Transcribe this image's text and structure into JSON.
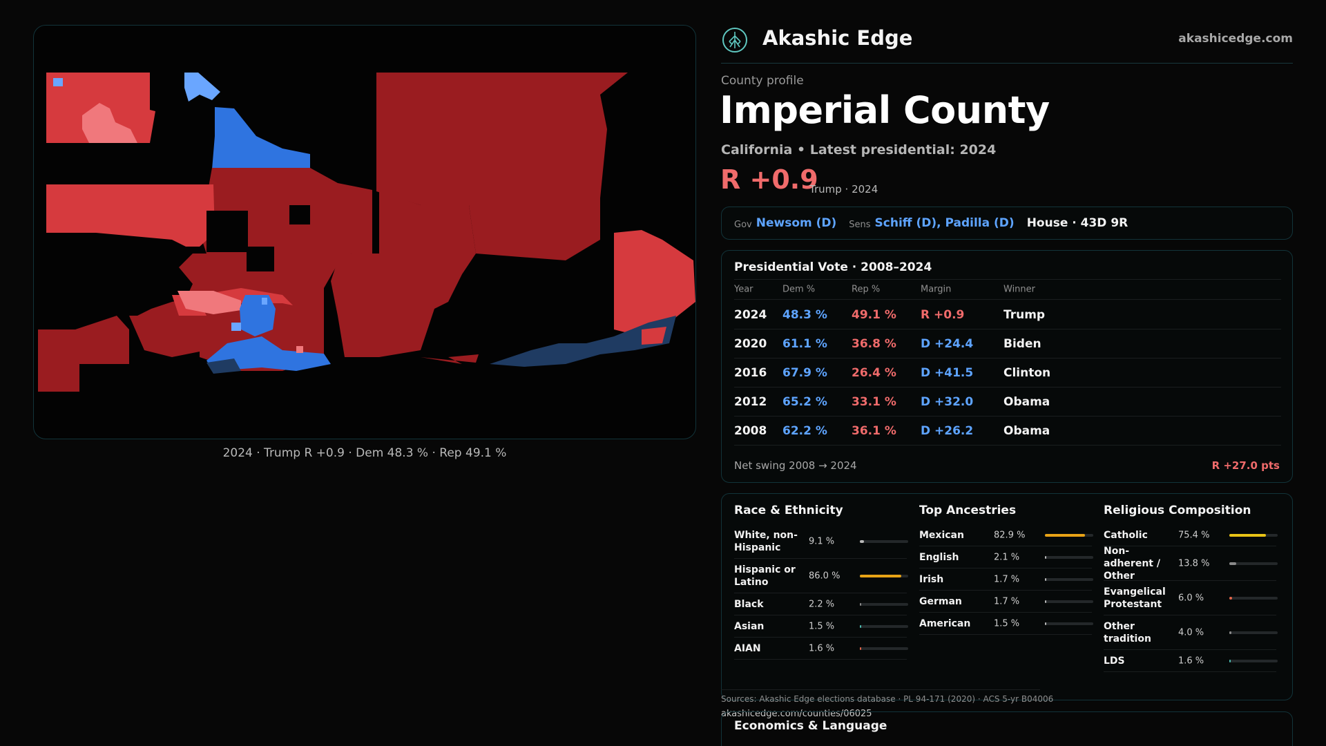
{
  "brand": {
    "name": "Akashic Edge",
    "url": "akashicedge.com",
    "logo_icon": "tree-of-life-icon"
  },
  "profile": {
    "eyebrow": "County profile",
    "title": "Imperial County",
    "subtitle": "California • Latest presidential: 2024",
    "margin": "R +0.9",
    "margin_note": "Trump · 2024"
  },
  "officials": {
    "gov_label": "Gov",
    "gov": "Newsom (D)",
    "sens_label": "Sens",
    "sens": "Schiff (D), Padilla (D)",
    "house": "House · 43D 9R"
  },
  "map": {
    "caption": "2024 · Trump R +0.9 · Dem 48.3 % · Rep 49.1 %",
    "colors": {
      "strong_r": "#9a1c20",
      "mid_r": "#d63a3e",
      "light_r": "#f0787c",
      "strong_d": "#2f74e0",
      "light_d": "#6aa6ff",
      "dark_d": "#1f3b62"
    }
  },
  "vote_table": {
    "title": "Presidential Vote · 2008–2024",
    "headers": {
      "year": "Year",
      "dem": "Dem %",
      "rep": "Rep %",
      "margin": "Margin",
      "winner": "Winner"
    },
    "rows": [
      {
        "year": "2024",
        "dem": "48.3 %",
        "rep": "49.1 %",
        "margin": "R +0.9",
        "party": "R",
        "winner": "Trump"
      },
      {
        "year": "2020",
        "dem": "61.1 %",
        "rep": "36.8 %",
        "margin": "D +24.4",
        "party": "D",
        "winner": "Biden"
      },
      {
        "year": "2016",
        "dem": "67.9 %",
        "rep": "26.4 %",
        "margin": "D +41.5",
        "party": "D",
        "winner": "Clinton"
      },
      {
        "year": "2012",
        "dem": "65.2 %",
        "rep": "33.1 %",
        "margin": "D +32.0",
        "party": "D",
        "winner": "Obama"
      },
      {
        "year": "2008",
        "dem": "62.2 %",
        "rep": "36.1 %",
        "margin": "D +26.2",
        "party": "D",
        "winner": "Obama"
      }
    ],
    "swing_label": "Net swing 2008 → 2024",
    "swing_value": "R +27.0 pts"
  },
  "demographics": [
    {
      "title": "Race & Ethnicity",
      "rows": [
        {
          "name": "White, non-Hispanic",
          "pct": "9.1 %",
          "value": 9.1,
          "color": "#b8b8b8"
        },
        {
          "name": "Hispanic or Latino",
          "pct": "86.0 %",
          "value": 86.0,
          "color": "#e8a316"
        },
        {
          "name": "Black",
          "pct": "2.2 %",
          "value": 2.2,
          "color": "#8a8a8a"
        },
        {
          "name": "Asian",
          "pct": "1.5 %",
          "value": 1.5,
          "color": "#4bbcb0"
        },
        {
          "name": "AIAN",
          "pct": "1.6 %",
          "value": 1.6,
          "color": "#e2654a"
        }
      ]
    },
    {
      "title": "Top Ancestries",
      "rows": [
        {
          "name": "Mexican",
          "pct": "82.9 %",
          "value": 82.9,
          "color": "#e8a316"
        },
        {
          "name": "English",
          "pct": "2.1 %",
          "value": 2.1,
          "color": "#b8b8b8"
        },
        {
          "name": "Irish",
          "pct": "1.7 %",
          "value": 1.7,
          "color": "#b8b8b8"
        },
        {
          "name": "German",
          "pct": "1.7 %",
          "value": 1.7,
          "color": "#b8b8b8"
        },
        {
          "name": "American",
          "pct": "1.5 %",
          "value": 1.5,
          "color": "#b8b8b8"
        }
      ]
    },
    {
      "title": "Religious Composition",
      "rows": [
        {
          "name": "Catholic",
          "pct": "75.4 %",
          "value": 75.4,
          "color": "#e8c316"
        },
        {
          "name": "Non-adherent / Other",
          "pct": "13.8 %",
          "value": 13.8,
          "color": "#8a8a8a"
        },
        {
          "name": "Evangelical Protestant",
          "pct": "6.0 %",
          "value": 6.0,
          "color": "#e2654a"
        },
        {
          "name": "Other tradition",
          "pct": "4.0 %",
          "value": 4.0,
          "color": "#8a8a8a"
        },
        {
          "name": "LDS",
          "pct": "1.6 %",
          "value": 1.6,
          "color": "#4bbcb0"
        }
      ]
    }
  ],
  "footer": {
    "sources": "Sources: Akashic Edge elections database · PL 94-171 (2020) · ACS 5-yr B04006",
    "url": "akashicedge.com/counties/06025",
    "next_section": "Economics & Language"
  }
}
